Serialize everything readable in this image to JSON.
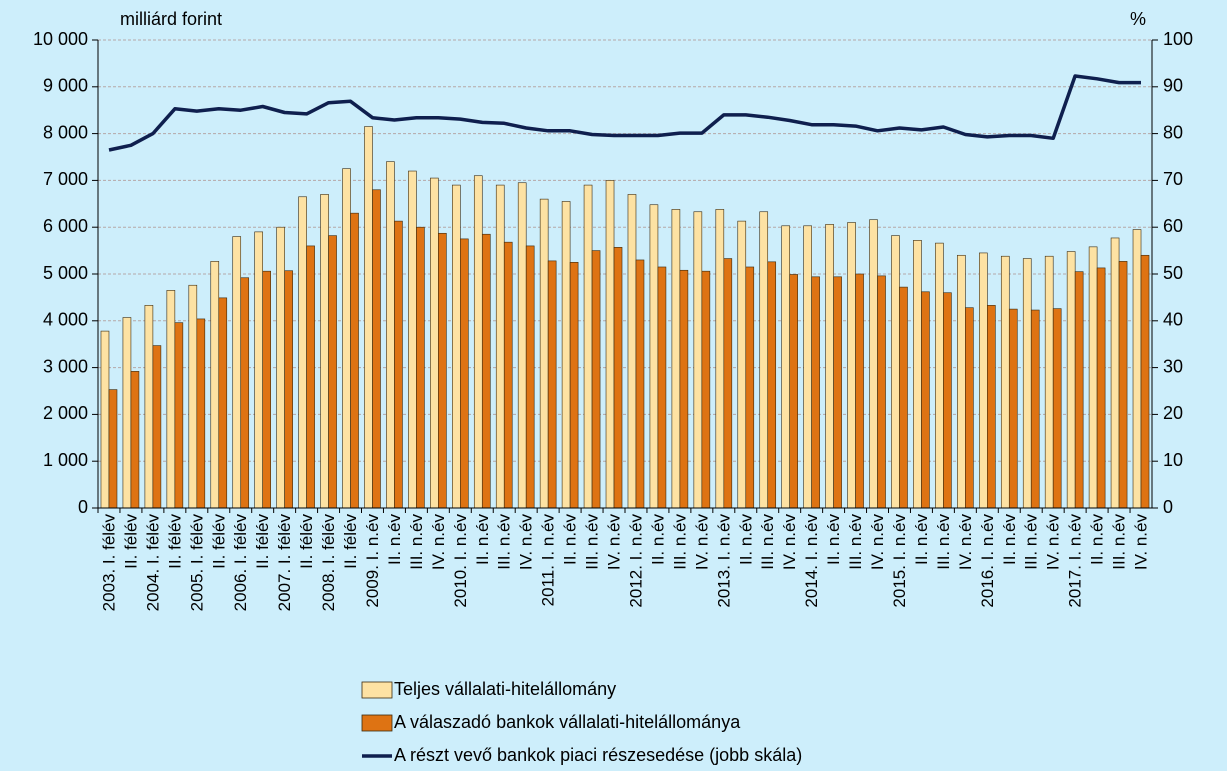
{
  "chart_data": {
    "type": "bar-line",
    "y_label": "milliárd forint",
    "y2_label": "%",
    "categories": [
      "2003. I. félév",
      "II. félév",
      "2004. I. félév",
      "II. félév",
      "2005. I. félév",
      "II. félév",
      "2006. I. félév",
      "II. félév",
      "2007. I. félév",
      "II. félév",
      "2008. I. félév",
      "II. félév",
      "2009. I. n.év",
      "II. n.év",
      "III. n.év",
      "IV. n.év",
      "2010. I. n.év",
      "II. n.év",
      "III. n.év",
      "IV. n.év",
      "2011. I. n.év",
      "II. n.év",
      "III. n.év",
      "IV. n.év",
      "2012. I. n.év",
      "II. n.év",
      "III. n.év",
      "IV. n.év",
      "2013. I. n.év",
      "II. n.év",
      "III. n.év",
      "IV. n.év",
      "2014. I. n.év",
      "II. n.év",
      "III. n.év",
      "IV. n.év",
      "2015. I. n.év",
      "II. n.év",
      "III. n.év",
      "IV. n.év",
      "2016. I. n.év",
      "II. n.év",
      "III. n.év",
      "IV. n.év",
      "2017. I. n.év",
      "II. n.év",
      "III. n.év",
      "IV. n.év"
    ],
    "series": [
      {
        "name": "Teljes vállalati-hitelállomány",
        "type": "bar",
        "color": "#fde2a3",
        "values": [
          3780,
          4070,
          4330,
          4650,
          4760,
          5270,
          5800,
          5900,
          6000,
          6650,
          6700,
          7250,
          8150,
          7400,
          7200,
          7050,
          6900,
          7100,
          6900,
          6950,
          6600,
          6550,
          6900,
          7000,
          6700,
          6480,
          6380,
          6330,
          6380,
          6130,
          6330,
          6030,
          6030,
          6060,
          6100,
          6160,
          5820,
          5720,
          5660,
          5400,
          5450,
          5380,
          5330,
          5380,
          5480,
          5580,
          5770,
          5950
        ]
      },
      {
        "name": "A válaszadó bankok vállalati-hitelállománya",
        "type": "bar",
        "color": "#de7313",
        "values": [
          2530,
          2920,
          3470,
          3960,
          4040,
          4490,
          4920,
          5060,
          5070,
          5600,
          5820,
          6300,
          6800,
          6130,
          6000,
          5870,
          5750,
          5850,
          5680,
          5600,
          5280,
          5250,
          5500,
          5570,
          5300,
          5150,
          5080,
          5060,
          5330,
          5150,
          5260,
          4990,
          4940,
          4940,
          5000,
          4960,
          4720,
          4620,
          4600,
          4280,
          4330,
          4250,
          4230,
          4260,
          5050,
          5130,
          5270,
          5400
        ]
      },
      {
        "name": "A részt vevő bankok piaci részesedése (jobb skála)",
        "type": "line",
        "axis": "y2",
        "color": "#0f1f4e",
        "values": [
          76.5,
          77.5,
          80,
          85.3,
          84.8,
          85.3,
          85,
          85.8,
          84.5,
          84.2,
          86.6,
          86.9,
          83.4,
          82.9,
          83.4,
          83.4,
          83.1,
          82.4,
          82.2,
          81.2,
          80.6,
          80.6,
          79.8,
          79.6,
          79.6,
          79.6,
          80.1,
          80.1,
          84,
          84,
          83.5,
          82.8,
          81.9,
          81.9,
          81.6,
          80.6,
          81.2,
          80.8,
          81.4,
          79.8,
          79.3,
          79.6,
          79.6,
          79,
          92.3,
          91.7,
          90.9,
          90.9
        ]
      }
    ],
    "ylim": [
      0,
      10000
    ],
    "yticks": [
      0,
      {
        "value": 1000,
        "label": "1 000"
      },
      {
        "value": 2000,
        "label": "2 000"
      },
      {
        "value": 3000,
        "label": "3 000"
      },
      {
        "value": 4000,
        "label": "4 000"
      },
      {
        "value": 5000,
        "label": "5 000"
      },
      {
        "value": 6000,
        "label": "6 000"
      },
      {
        "value": 7000,
        "label": "7 000"
      },
      {
        "value": 8000,
        "label": "8 000"
      },
      {
        "value": 9000,
        "label": "9 000"
      },
      {
        "value": 10000,
        "label": "10 000"
      }
    ],
    "y2lim": [
      0,
      100
    ],
    "y2ticks": [
      0,
      10,
      20,
      30,
      40,
      50,
      60,
      70,
      80,
      90,
      100
    ],
    "grid": true,
    "legend": "bottom"
  }
}
